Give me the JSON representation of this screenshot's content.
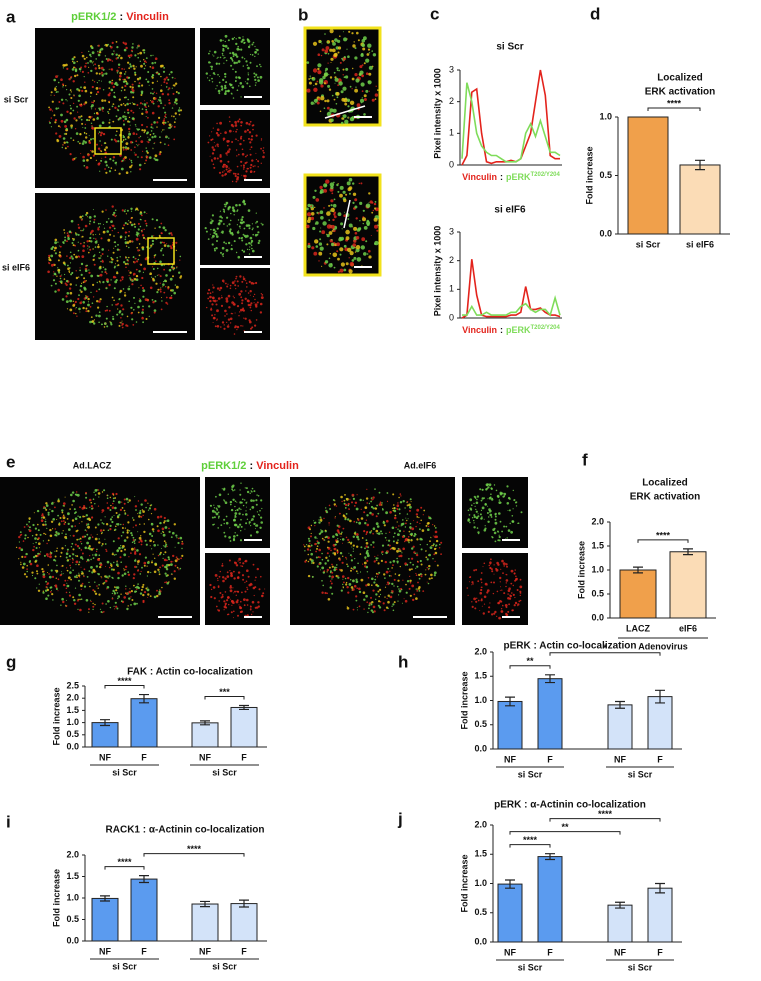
{
  "letters": [
    "a",
    "b",
    "c",
    "d",
    "e",
    "f",
    "g",
    "h",
    "i",
    "j"
  ],
  "a": {
    "title_green": "pERK1/2",
    "title_sep": ":",
    "title_red": "Vinculin",
    "rows": [
      "si Scr",
      "si eIF6"
    ]
  },
  "e": {
    "title_green": "pERK1/2",
    "title_sep": ":",
    "title_red": "Vinculin",
    "conditions": [
      "Ad.LACZ",
      "Ad.eIF6"
    ]
  },
  "chart_data": [
    {
      "type": "line",
      "title": "si Scr",
      "ylabel": "Pixel intensity x 1000",
      "ylim": [
        0,
        3
      ],
      "yticks": [
        0,
        1,
        2,
        3
      ],
      "xlabel_sep": ":",
      "xlabel_sup": "T202/Y204",
      "series": [
        {
          "name": "Vinculin",
          "color": "#e3231c",
          "values": [
            0,
            0.3,
            2.3,
            2.4,
            1.0,
            0.1,
            0.05,
            0.1,
            0.1,
            0.1,
            0.15,
            0.1,
            0.2,
            0.6,
            1.0,
            2.0,
            3.0,
            2.2,
            0.3,
            0.2,
            0.2
          ]
        },
        {
          "name": "pERK",
          "color": "#7fdc5a",
          "values": [
            0.2,
            2.6,
            2.0,
            1.0,
            0.6,
            0.4,
            0.3,
            0.3,
            0.2,
            0.1,
            0.1,
            0.1,
            0.2,
            1.0,
            1.3,
            0.9,
            1.4,
            0.9,
            0.4,
            0.4,
            0.3
          ]
        }
      ]
    },
    {
      "type": "line",
      "title": "si eIF6",
      "ylabel": "Pixel intensity x 1000",
      "ylim": [
        0,
        3
      ],
      "yticks": [
        0,
        1,
        2,
        3
      ],
      "xlabel_sep": ":",
      "xlabel_sup": "T202/Y204",
      "series": [
        {
          "name": "Vinculin",
          "color": "#e3231c",
          "values": [
            0,
            0.1,
            2.05,
            0.8,
            0.1,
            0.05,
            0.05,
            0.05,
            0.05,
            0.05,
            0.1,
            0.1,
            0.2,
            1.1,
            0.3,
            0.3,
            0.35,
            0.2,
            0.1,
            0.1,
            0.05
          ]
        },
        {
          "name": "pERK",
          "color": "#7fdc5a",
          "values": [
            0.1,
            0.1,
            0.4,
            0.1,
            0.1,
            0.2,
            0.1,
            0.1,
            0.1,
            0.1,
            0.2,
            0.2,
            0.4,
            0.5,
            0.3,
            0.2,
            0.3,
            0.3,
            0.1,
            0.7,
            0.1
          ]
        }
      ]
    },
    {
      "type": "bar",
      "title": [
        "Localized",
        "ERK activation"
      ],
      "ylabel": "Fold increase",
      "categories": [
        "si Scr",
        "si eIF6"
      ],
      "values": [
        1.0,
        0.59
      ],
      "errors": [
        0,
        0.04
      ],
      "colors": [
        "#f0a04b",
        "#fbdcb6"
      ],
      "ylim": [
        0,
        1.0
      ],
      "yticks": [
        {
          "value": 0,
          "label": "0.0"
        },
        {
          "value": 0.5,
          "label": "0.5"
        },
        {
          "value": 1,
          "label": "1.0"
        }
      ],
      "significance": [
        {
          "label": "****",
          "from": 0,
          "to": 1
        }
      ]
    },
    {
      "type": "bar",
      "title": [
        "Localized",
        "ERK activation"
      ],
      "ylabel": "Fold increase",
      "xlabel": "Adenovirus",
      "categories": [
        "LACZ",
        "eIF6"
      ],
      "values": [
        1.0,
        1.38
      ],
      "errors": [
        0.06,
        0.06
      ],
      "colors": [
        "#f0a04b",
        "#fbdcb6"
      ],
      "ylim": [
        0,
        2.0
      ],
      "yticks": [
        {
          "value": 0,
          "label": "0.0"
        },
        {
          "value": 0.5,
          "label": "0.5"
        },
        {
          "value": 1,
          "label": "1.0"
        },
        {
          "value": 1.5,
          "label": "1.5"
        },
        {
          "value": 2,
          "label": "2.0"
        }
      ],
      "significance": [
        {
          "label": "****",
          "from": 0,
          "to": 1
        }
      ]
    },
    {
      "type": "bar",
      "title": [
        "FAK : Actin co-localization"
      ],
      "ylabel": "Fold increase",
      "categories": [
        "NF",
        "F",
        "NF",
        "F"
      ],
      "groups": [
        "si Scr",
        "si Scr"
      ],
      "values": [
        1.0,
        1.98,
        0.99,
        1.62
      ],
      "errors": [
        0.12,
        0.17,
        0.08,
        0.08
      ],
      "colors": [
        "#5b9bef",
        "#5b9bef",
        "#d3e3f9",
        "#d3e3f9"
      ],
      "ylim": [
        0,
        2.5
      ],
      "yticks": [
        {
          "value": 0,
          "label": "0.0"
        },
        {
          "value": 0.5,
          "label": "0.5"
        },
        {
          "value": 1,
          "label": "1.0"
        },
        {
          "value": 1.5,
          "label": "1.5"
        },
        {
          "value": 2,
          "label": "2.0"
        },
        {
          "value": 2.5,
          "label": "2.5"
        }
      ],
      "significance": [
        {
          "label": "****",
          "from": 0,
          "to": 1
        },
        {
          "label": "***",
          "from": 2,
          "to": 3
        }
      ]
    },
    {
      "type": "bar",
      "title": [
        "pERK : Actin co-localization"
      ],
      "ylabel": "Fold increase",
      "categories": [
        "NF",
        "F",
        "NF",
        "F"
      ],
      "groups": [
        "si Scr",
        "si Scr"
      ],
      "values": [
        0.98,
        1.45,
        0.91,
        1.08
      ],
      "errors": [
        0.09,
        0.08,
        0.07,
        0.13
      ],
      "colors": [
        "#5b9bef",
        "#5b9bef",
        "#d3e3f9",
        "#d3e3f9"
      ],
      "ylim": [
        0,
        2.0
      ],
      "yticks": [
        {
          "value": 0,
          "label": "0.0"
        },
        {
          "value": 0.5,
          "label": "0.5"
        },
        {
          "value": 1,
          "label": "1.0"
        },
        {
          "value": 1.5,
          "label": "1.5"
        },
        {
          "value": 2,
          "label": "2.0"
        }
      ],
      "significance": [
        {
          "label": "**",
          "from": 0,
          "to": 1
        },
        {
          "label": "*",
          "from": 1,
          "to": 3
        }
      ]
    },
    {
      "type": "bar",
      "title": [
        "RACK1 : α-Actinin co-localization"
      ],
      "ylabel": "Fold increase",
      "categories": [
        "NF",
        "F",
        "NF",
        "F"
      ],
      "groups": [
        "si Scr",
        "si Scr"
      ],
      "values": [
        0.99,
        1.44,
        0.86,
        0.87
      ],
      "errors": [
        0.06,
        0.08,
        0.06,
        0.08
      ],
      "colors": [
        "#5b9bef",
        "#5b9bef",
        "#d3e3f9",
        "#d3e3f9"
      ],
      "ylim": [
        0,
        2.0
      ],
      "yticks": [
        {
          "value": 0,
          "label": "0.0"
        },
        {
          "value": 0.5,
          "label": "0.5"
        },
        {
          "value": 1,
          "label": "1.0"
        },
        {
          "value": 1.5,
          "label": "1.5"
        },
        {
          "value": 2,
          "label": "2.0"
        }
      ],
      "significance": [
        {
          "label": "****",
          "from": 0,
          "to": 1
        },
        {
          "label": "****",
          "from": 1,
          "to": 3
        }
      ]
    },
    {
      "type": "bar",
      "title": [
        "pERK : α-Actinin co-localization"
      ],
      "ylabel": "Fold increase",
      "categories": [
        "NF",
        "F",
        "NF",
        "F"
      ],
      "groups": [
        "si Scr",
        "si Scr"
      ],
      "values": [
        0.99,
        1.46,
        0.63,
        0.92
      ],
      "errors": [
        0.07,
        0.05,
        0.05,
        0.08
      ],
      "colors": [
        "#5b9bef",
        "#5b9bef",
        "#d3e3f9",
        "#d3e3f9"
      ],
      "ylim": [
        0,
        2.0
      ],
      "yticks": [
        {
          "value": 0,
          "label": "0.0"
        },
        {
          "value": 0.5,
          "label": "0.5"
        },
        {
          "value": 1,
          "label": "1.0"
        },
        {
          "value": 1.5,
          "label": "1.5"
        },
        {
          "value": 2,
          "label": "2.0"
        }
      ],
      "significance": [
        {
          "label": "****",
          "from": 0,
          "to": 1
        },
        {
          "label": "**",
          "from": 0,
          "to": 2
        },
        {
          "label": "****",
          "from": 1,
          "to": 3
        }
      ]
    }
  ]
}
